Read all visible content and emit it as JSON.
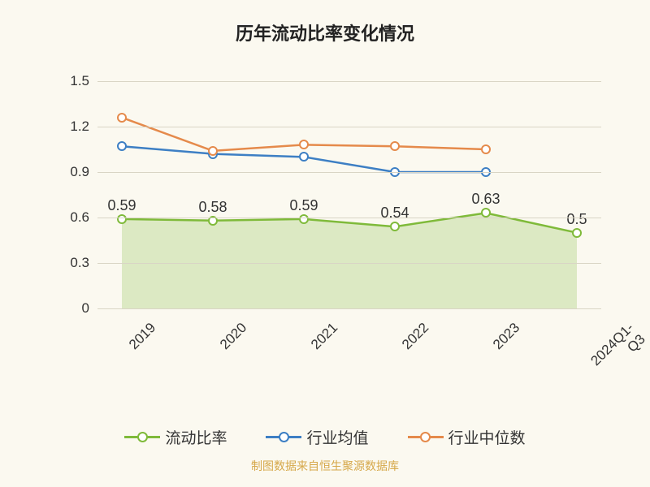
{
  "title": "历年流动比率变化情况",
  "footnote": "制图数据来自恒生聚源数据库",
  "background_color": "#fbf9f0",
  "grid_color": "#d9d5c5",
  "text_color": "#333333",
  "footnote_color": "#d6a84a",
  "title_fontsize": 22,
  "tick_fontsize": 17,
  "label_fontsize": 18,
  "legend_fontsize": 19,
  "chart": {
    "type": "line",
    "ylim": [
      0,
      1.5
    ],
    "yticks": [
      0,
      0.3,
      0.6,
      0.9,
      1.2,
      1.5
    ],
    "categories": [
      "2019",
      "2020",
      "2021",
      "2022",
      "2023",
      "2024Q1-Q3"
    ],
    "xtick_rotation": -45,
    "line_width": 2.5,
    "marker_size": 12,
    "area_opacity": 0.25
  },
  "series": [
    {
      "key": "current_ratio",
      "label": "流动比率",
      "color": "#7fba3a",
      "fill": true,
      "show_labels": true,
      "values": [
        0.59,
        0.58,
        0.59,
        0.54,
        0.63,
        0.5
      ],
      "value_labels": [
        "0.59",
        "0.58",
        "0.59",
        "0.54",
        "0.63",
        "0.5"
      ]
    },
    {
      "key": "industry_mean",
      "label": "行业均值",
      "color": "#3d7fc4",
      "fill": false,
      "show_labels": false,
      "values": [
        1.07,
        1.02,
        1.0,
        0.9,
        0.9,
        null
      ]
    },
    {
      "key": "industry_median",
      "label": "行业中位数",
      "color": "#e58a4b",
      "fill": false,
      "show_labels": false,
      "values": [
        1.26,
        1.04,
        1.08,
        1.07,
        1.05,
        null
      ]
    }
  ]
}
